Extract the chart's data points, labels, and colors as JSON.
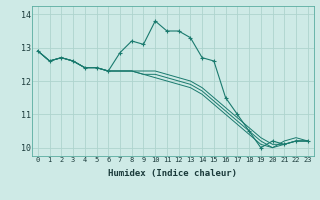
{
  "xlabel": "Humidex (Indice chaleur)",
  "ylabel": "",
  "bg_color": "#ceeae6",
  "grid_color": "#aed4ce",
  "line_color": "#1a7a6e",
  "xlim": [
    -0.5,
    23.5
  ],
  "ylim": [
    9.75,
    14.25
  ],
  "xticks": [
    0,
    1,
    2,
    3,
    4,
    5,
    6,
    7,
    8,
    9,
    10,
    11,
    12,
    13,
    14,
    15,
    16,
    17,
    18,
    19,
    20,
    21,
    22,
    23
  ],
  "yticks": [
    10,
    11,
    12,
    13,
    14
  ],
  "lines": [
    [
      12.9,
      12.6,
      12.7,
      12.6,
      12.4,
      12.4,
      12.3,
      12.85,
      13.2,
      13.1,
      13.8,
      13.5,
      13.5,
      13.3,
      12.7,
      12.6,
      11.5,
      11.0,
      10.5,
      10.0,
      10.2,
      10.1,
      10.2,
      10.2
    ],
    [
      12.9,
      12.6,
      12.7,
      12.6,
      12.4,
      12.4,
      12.3,
      12.3,
      12.3,
      12.3,
      12.3,
      12.2,
      12.1,
      12.0,
      11.8,
      11.5,
      11.2,
      10.9,
      10.6,
      10.3,
      10.1,
      10.1,
      10.2,
      10.2
    ],
    [
      12.9,
      12.6,
      12.7,
      12.6,
      12.4,
      12.4,
      12.3,
      12.3,
      12.3,
      12.2,
      12.2,
      12.1,
      12.0,
      11.9,
      11.7,
      11.4,
      11.1,
      10.8,
      10.5,
      10.2,
      10.0,
      10.1,
      10.2,
      10.2
    ],
    [
      12.9,
      12.6,
      12.7,
      12.6,
      12.4,
      12.4,
      12.3,
      12.3,
      12.3,
      12.2,
      12.1,
      12.0,
      11.9,
      11.8,
      11.6,
      11.3,
      11.0,
      10.7,
      10.4,
      10.1,
      10.0,
      10.2,
      10.3,
      10.2
    ]
  ]
}
